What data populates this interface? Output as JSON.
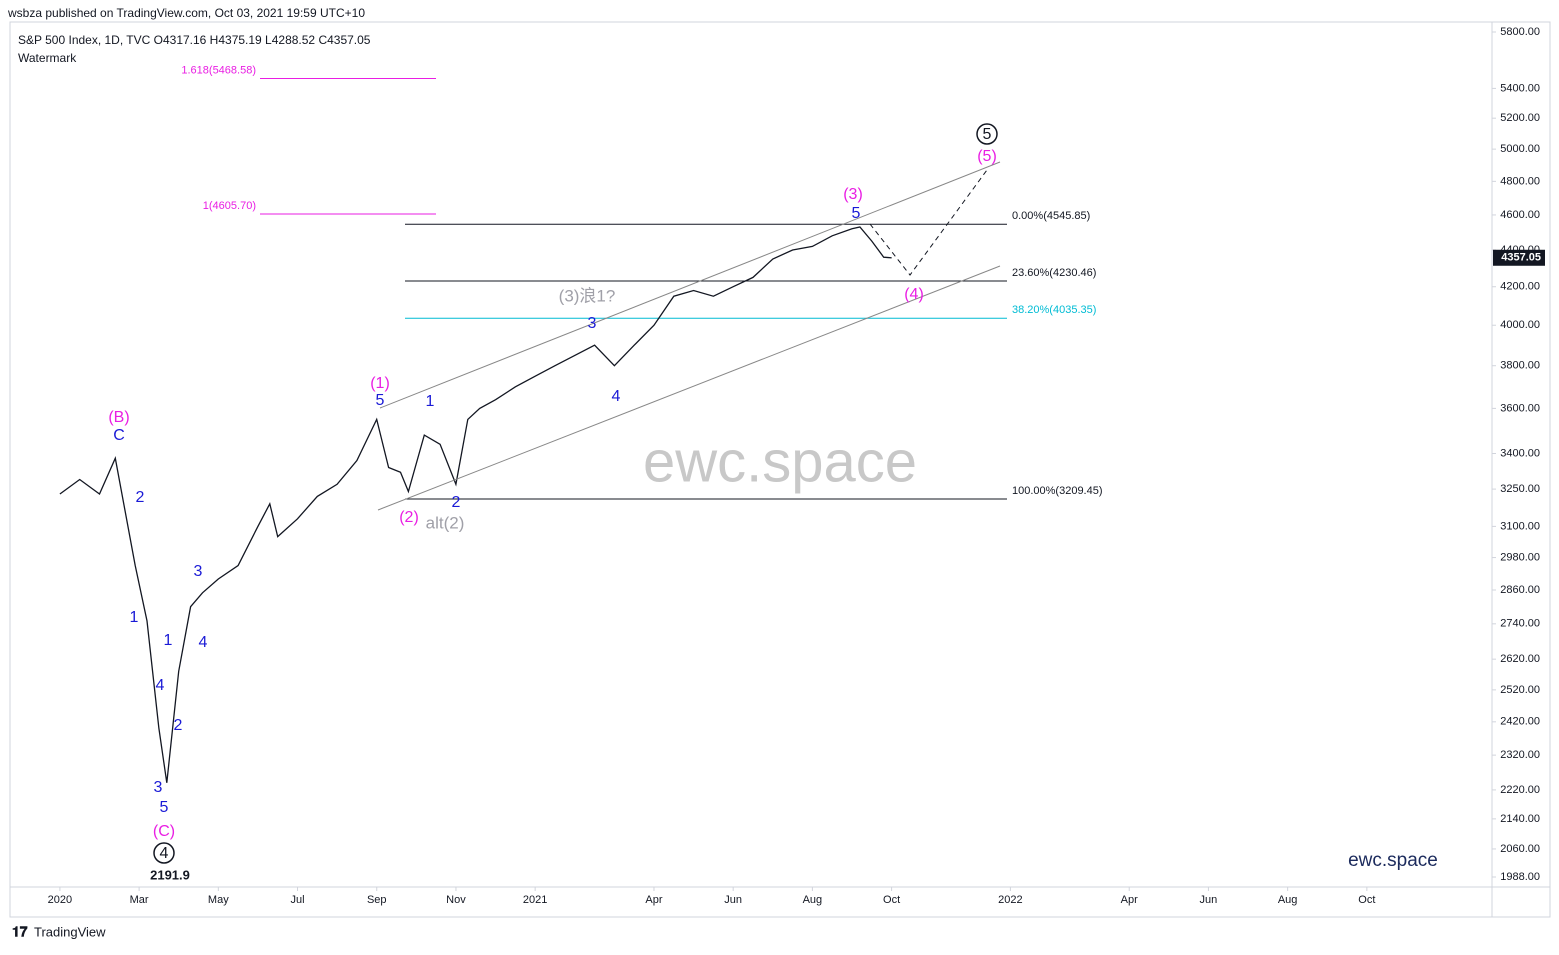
{
  "header": {
    "publisher": "wsbza published on TradingView.com, Oct 03, 2021 19:59 UTC+10",
    "symbol": "S&P 500 Index, 1D, TVC  O4317.16  H4375.19  L4288.52  C4357.05",
    "watermark": "Watermark"
  },
  "chart_data": {
    "type": "line",
    "color": "#131722",
    "log_scale": true,
    "x": [
      0,
      0.5,
      1.0,
      1.4,
      1.9,
      2.2,
      2.5,
      2.7,
      3.0,
      3.3,
      3.6,
      4.0,
      4.5,
      5.0,
      5.3,
      5.5,
      6.0,
      6.5,
      7.0,
      7.5,
      8.0,
      8.3,
      8.6,
      8.8,
      9.2,
      9.6,
      10.0,
      10.3,
      10.6,
      11.0,
      11.5,
      12.0,
      12.5,
      13.0,
      13.5,
      14.0,
      14.5,
      15.0,
      15.5,
      16.0,
      16.5,
      17.0,
      17.5,
      18.0,
      18.5,
      19.0,
      19.5,
      20.0,
      20.2,
      20.5,
      20.8,
      21.0
    ],
    "values": [
      3230,
      3290,
      3230,
      3380,
      2950,
      2750,
      2400,
      2240,
      2580,
      2800,
      2850,
      2900,
      2950,
      3100,
      3190,
      3060,
      3130,
      3220,
      3270,
      3370,
      3550,
      3340,
      3320,
      3240,
      3480,
      3440,
      3270,
      3550,
      3600,
      3640,
      3700,
      3750,
      3800,
      3850,
      3900,
      3800,
      3900,
      4000,
      4150,
      4180,
      4150,
      4200,
      4250,
      4350,
      4400,
      4420,
      4480,
      4520,
      4530,
      4450,
      4360,
      4357
    ],
    "last_price": 4357.05,
    "xlim": [
      -1.26,
      36.16
    ],
    "xticks": [
      {
        "value": 0,
        "label": "2020"
      },
      {
        "value": 2,
        "label": "Mar"
      },
      {
        "value": 4,
        "label": "May"
      },
      {
        "value": 6,
        "label": "Jul"
      },
      {
        "value": 8,
        "label": "Sep"
      },
      {
        "value": 10,
        "label": "Nov"
      },
      {
        "value": 12,
        "label": "2021"
      },
      {
        "value": 15,
        "label": "Apr"
      },
      {
        "value": 17,
        "label": "Jun"
      },
      {
        "value": 19,
        "label": "Aug"
      },
      {
        "value": 21,
        "label": "Oct"
      },
      {
        "value": 24,
        "label": "2022"
      },
      {
        "value": 27,
        "label": "Apr"
      },
      {
        "value": 29,
        "label": "Jun"
      },
      {
        "value": 31,
        "label": "Aug"
      },
      {
        "value": 33,
        "label": "Oct"
      }
    ],
    "ylim": [
      1963,
      5874
    ],
    "yticks": [
      {
        "value": 5800,
        "label": "5800.00"
      },
      {
        "value": 5400,
        "label": "5400.00"
      },
      {
        "value": 5200,
        "label": "5200.00"
      },
      {
        "value": 5000,
        "label": "5000.00"
      },
      {
        "value": 4800,
        "label": "4800.00"
      },
      {
        "value": 4600,
        "label": "4600.00"
      },
      {
        "value": 4400,
        "label": "4400.00"
      },
      {
        "value": 4200,
        "label": "4200.00"
      },
      {
        "value": 4000,
        "label": "4000.00"
      },
      {
        "value": 3800,
        "label": "3800.00"
      },
      {
        "value": 3600,
        "label": "3600.00"
      },
      {
        "value": 3400,
        "label": "3400.00"
      },
      {
        "value": 3250,
        "label": "3250.00"
      },
      {
        "value": 3100,
        "label": "3100.00"
      },
      {
        "value": 2980,
        "label": "2980.00"
      },
      {
        "value": 2860,
        "label": "2860.00"
      },
      {
        "value": 2740,
        "label": "2740.00"
      },
      {
        "value": 2620,
        "label": "2620.00"
      },
      {
        "value": 2520,
        "label": "2520.00"
      },
      {
        "value": 2420,
        "label": "2420.00"
      },
      {
        "value": 2320,
        "label": "2320.00"
      },
      {
        "value": 2220,
        "label": "2220.00"
      },
      {
        "value": 2140,
        "label": "2140.00"
      },
      {
        "value": 2060,
        "label": "2060.00"
      },
      {
        "value": 1988,
        "label": "1988.00"
      }
    ],
    "fib_levels": [
      {
        "label": "0.00%(4545.85)",
        "value": 4545.85,
        "color": "#131722",
        "group": "main"
      },
      {
        "label": "23.60%(4230.46)",
        "value": 4230.46,
        "color": "#131722",
        "group": "main"
      },
      {
        "label": "38.20%(4035.35)",
        "value": 4035.35,
        "color": "#00bcd4",
        "group": "main"
      },
      {
        "label": "100.00%(3209.45)",
        "value": 3209.45,
        "color": "#131722",
        "group": "main"
      },
      {
        "label": "1(4605.70)",
        "value": 4605.7,
        "color": "#e91ee3",
        "group": "ext"
      },
      {
        "label": "1.618(5468.58)",
        "value": 5468.58,
        "color": "#e91ee3",
        "group": "ext"
      }
    ]
  },
  "labels": [
    "(B)",
    "C",
    "2",
    "1",
    "3",
    "1",
    "4",
    "4",
    "2",
    "3",
    "5",
    "(C)",
    "4",
    "2191.9",
    "(1)",
    "5",
    "1",
    "(2)",
    "alt(2)",
    "2",
    "(3)浪1?",
    "3",
    "4",
    "(3)",
    "5",
    "5",
    "(5)",
    "(4)",
    "ewc.space",
    "ewc.space"
  ],
  "footer": "TradingView"
}
